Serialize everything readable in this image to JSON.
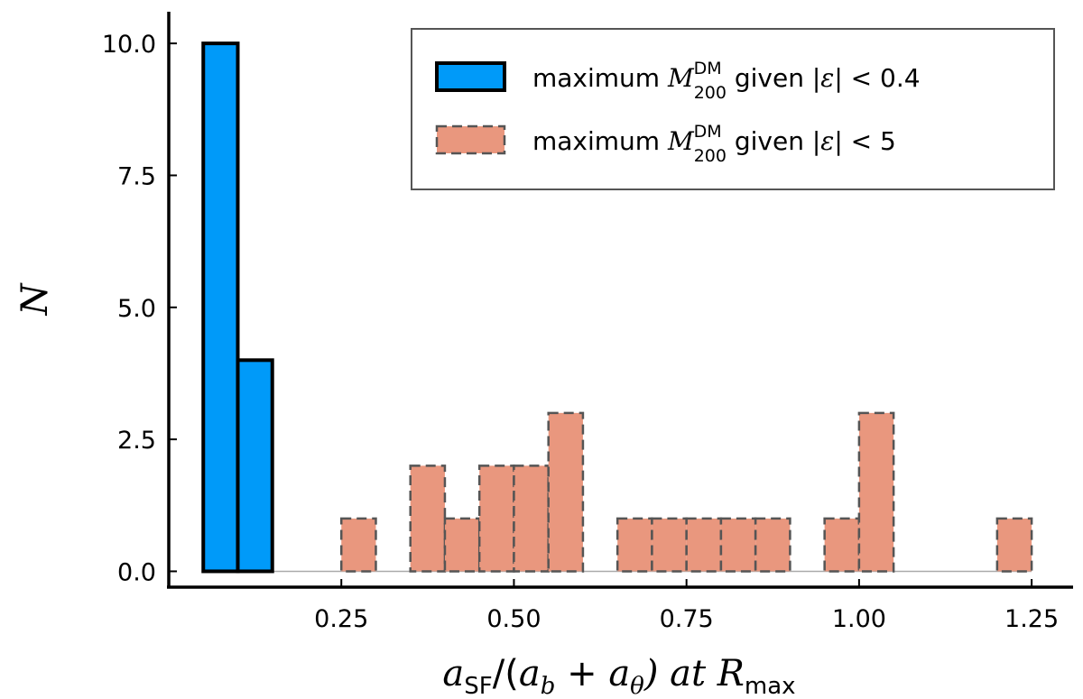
{
  "chart_data": {
    "type": "bar",
    "xlabel": {
      "part1": "a",
      "sub1": "SF",
      "part2": "/(",
      "part3": "a",
      "sub3": "b",
      "part4": " + ",
      "part5": "a",
      "sub5": "θ",
      "part6": ") at ",
      "part7": "R",
      "sub7": "max"
    },
    "ylabel": "N",
    "xlim": [
      0.0,
      1.31
    ],
    "ylim": [
      -0.3,
      10.6
    ],
    "xticks": [
      0.25,
      0.5,
      0.75,
      1.0,
      1.25
    ],
    "xtick_labels": [
      "0.25",
      "0.50",
      "0.75",
      "1.00",
      "1.25"
    ],
    "yticks": [
      0.0,
      2.5,
      5.0,
      7.5,
      10.0
    ],
    "ytick_labels": [
      "0.0",
      "2.5",
      "5.0",
      "7.5",
      "10.0"
    ],
    "series": [
      {
        "name": "maximum M200DM given |ε| < 0.4",
        "color": "#009af9",
        "style": "solid",
        "bins": [
          {
            "x0": 0.05,
            "x1": 0.1,
            "count": 10
          },
          {
            "x0": 0.1,
            "x1": 0.15,
            "count": 4
          }
        ]
      },
      {
        "name": "maximum M200DM given |ε| < 5",
        "color": "#e9977e",
        "style": "dashed",
        "bins": [
          {
            "x0": 0.25,
            "x1": 0.3,
            "count": 1
          },
          {
            "x0": 0.35,
            "x1": 0.4,
            "count": 2
          },
          {
            "x0": 0.4,
            "x1": 0.45,
            "count": 1
          },
          {
            "x0": 0.45,
            "x1": 0.5,
            "count": 2
          },
          {
            "x0": 0.5,
            "x1": 0.55,
            "count": 2
          },
          {
            "x0": 0.55,
            "x1": 0.6,
            "count": 3
          },
          {
            "x0": 0.65,
            "x1": 0.7,
            "count": 1
          },
          {
            "x0": 0.7,
            "x1": 0.75,
            "count": 1
          },
          {
            "x0": 0.75,
            "x1": 0.8,
            "count": 1
          },
          {
            "x0": 0.8,
            "x1": 0.85,
            "count": 1
          },
          {
            "x0": 0.85,
            "x1": 0.9,
            "count": 1
          },
          {
            "x0": 0.95,
            "x1": 1.0,
            "count": 1
          },
          {
            "x0": 1.0,
            "x1": 1.05,
            "count": 3
          },
          {
            "x0": 1.2,
            "x1": 1.25,
            "count": 1
          }
        ]
      }
    ],
    "legend": {
      "placement": "top-right",
      "entries": [
        {
          "prefix": "maximum ",
          "sym": "M",
          "sup": "DM",
          "sub": "200",
          "suffix_text": " given |",
          "eps": "ε",
          "rel": "| < 0.4"
        },
        {
          "prefix": "maximum ",
          "sym": "M",
          "sup": "DM",
          "sub": "200",
          "suffix_text": " given |",
          "eps": "ε",
          "rel": "| < 5"
        }
      ]
    }
  }
}
